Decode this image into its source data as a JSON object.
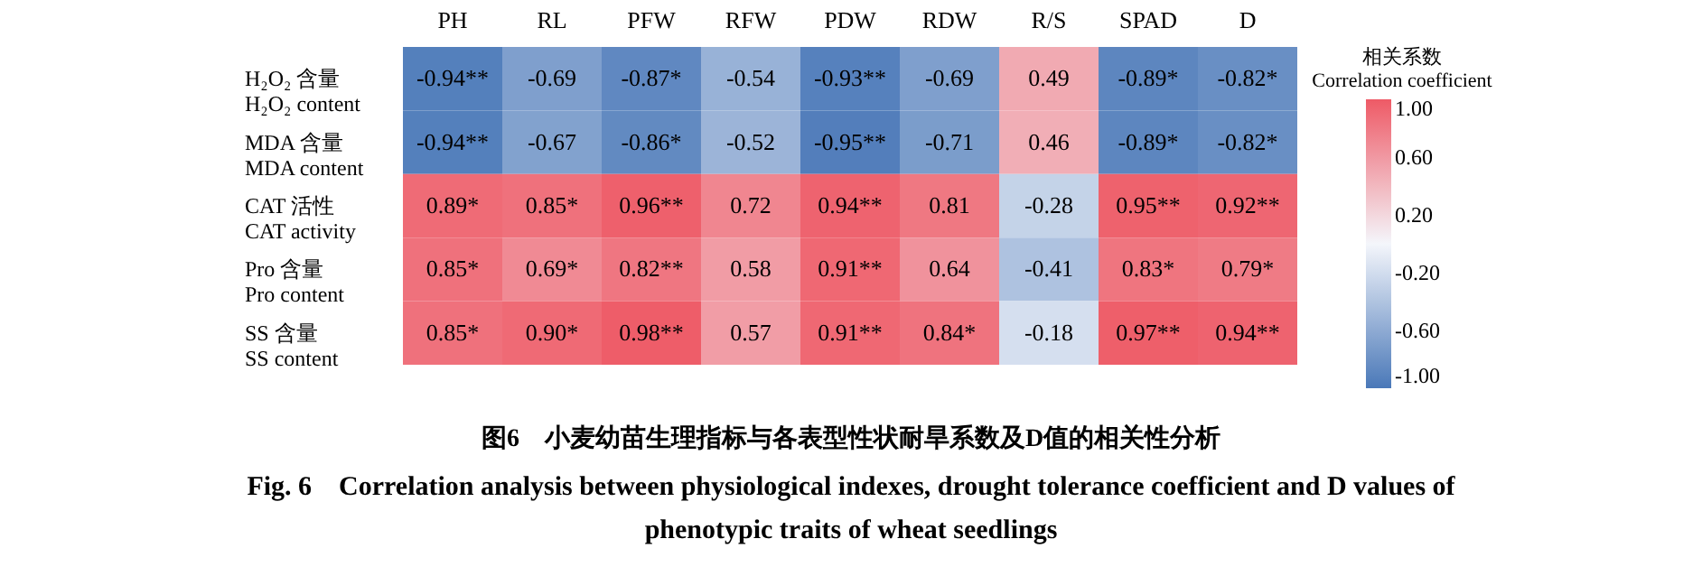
{
  "chart_data": {
    "type": "heatmap",
    "title": "图6　小麦幼苗生理指标与各表型性状耐旱系数及D值的相关性分析",
    "subtitle": "Fig. 6　Correlation analysis between physiological indexes, drought tolerance coefficient and D values of phenotypic traits of wheat seedlings",
    "legend_title": "相关系数\nCorrelation coefficient",
    "categories": [
      "PH",
      "RL",
      "PFW",
      "RFW",
      "PDW",
      "RDW",
      "R/S",
      "SPAD",
      "D"
    ],
    "y_categories": [
      "H₂O₂ 含量\nH₂O₂ content",
      "MDA 含量\nMDA content",
      "CAT 活性\nCAT activity",
      "Pro 含量\nPro content",
      "SS 含量\nSS content"
    ],
    "cells": [
      [
        -0.94,
        -0.69,
        -0.87,
        -0.54,
        -0.93,
        -0.69,
        0.49,
        -0.89,
        -0.82
      ],
      [
        -0.94,
        -0.67,
        -0.86,
        -0.52,
        -0.95,
        -0.71,
        0.46,
        -0.89,
        -0.82
      ],
      [
        0.89,
        0.85,
        0.96,
        0.72,
        0.94,
        0.81,
        -0.28,
        0.95,
        0.92
      ],
      [
        0.85,
        0.69,
        0.82,
        0.58,
        0.91,
        0.64,
        -0.41,
        0.83,
        0.79
      ],
      [
        0.85,
        0.9,
        0.98,
        0.57,
        0.91,
        0.84,
        -0.18,
        0.97,
        0.94
      ]
    ],
    "cell_labels": [
      [
        "-0.94**",
        "-0.69",
        "-0.87*",
        "-0.54",
        "-0.93**",
        "-0.69",
        "0.49",
        "-0.89*",
        "-0.82*"
      ],
      [
        "-0.94**",
        "-0.67",
        "-0.86*",
        "-0.52",
        "-0.95**",
        "-0.71",
        "0.46",
        "-0.89*",
        "-0.82*"
      ],
      [
        "0.89*",
        "0.85*",
        "0.96**",
        "0.72",
        "0.94**",
        "0.81",
        "-0.28",
        "0.95**",
        "0.92**"
      ],
      [
        "0.85*",
        "0.69*",
        "0.82**",
        "0.58",
        "0.91**",
        "0.64",
        "-0.41",
        "0.83*",
        "0.79*"
      ],
      [
        "0.85*",
        "0.90*",
        "0.98**",
        "0.57",
        "0.91**",
        "0.84*",
        "-0.18",
        "0.97**",
        "0.94**"
      ]
    ],
    "clim": [
      -1,
      1
    ],
    "cticks": [
      {
        "value": 1,
        "label": "1.00"
      },
      {
        "value": 0.6,
        "label": "0.60"
      },
      {
        "value": 0.2,
        "label": "0.20"
      },
      {
        "value": -0.2,
        "label": "-0.20"
      },
      {
        "value": -0.6,
        "label": "-0.60"
      },
      {
        "value": -1,
        "label": "-1.00"
      }
    ]
  }
}
